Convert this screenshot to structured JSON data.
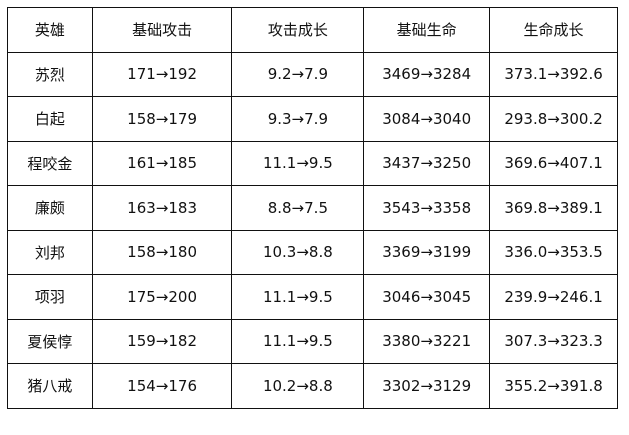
{
  "table": {
    "headers": [
      "英雄",
      "基础攻击",
      "攻击成长",
      "基础生命",
      "生命成长"
    ],
    "rows": [
      [
        "苏烈",
        "171→192",
        "9.2→7.9",
        "3469→3284",
        "373.1→392.6"
      ],
      [
        "白起",
        "158→179",
        "9.3→7.9",
        "3084→3040",
        "293.8→300.2"
      ],
      [
        "程咬金",
        "161→185",
        "11.1→9.5",
        "3437→3250",
        "369.6→407.1"
      ],
      [
        "廉颇",
        "163→183",
        "8.8→7.5",
        "3543→3358",
        "369.8→389.1"
      ],
      [
        "刘邦",
        "158→180",
        "10.3→8.8",
        "3369→3199",
        "336.0→353.5"
      ],
      [
        "项羽",
        "175→200",
        "11.1→9.5",
        "3046→3045",
        "239.9→246.1"
      ],
      [
        "夏侯惇",
        "159→182",
        "11.1→9.5",
        "3380→3221",
        "307.3→323.3"
      ],
      [
        "猪八戒",
        "154→176",
        "10.2→8.8",
        "3302→3129",
        "355.2→391.8"
      ]
    ]
  }
}
